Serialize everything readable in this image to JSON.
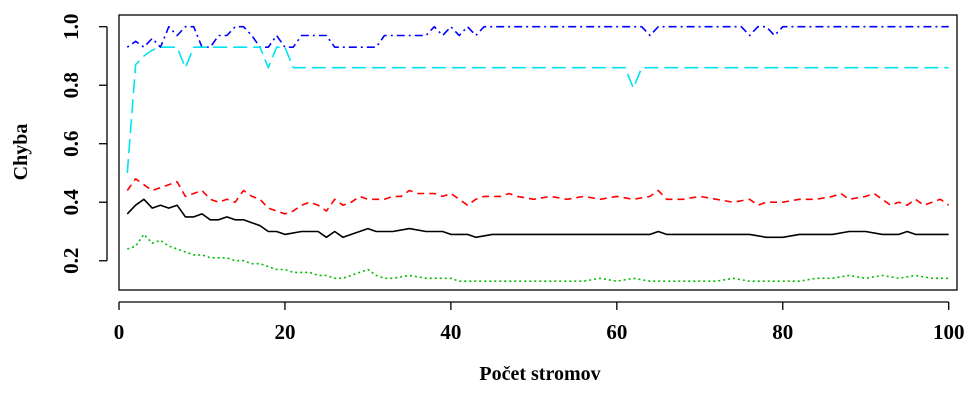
{
  "chart_data": {
    "type": "line",
    "xlabel": "Počet stromov",
    "ylabel": "Chyba",
    "xlim": [
      0,
      101
    ],
    "ylim": [
      0.1,
      1.04
    ],
    "xticks": [
      0,
      20,
      40,
      60,
      80,
      100
    ],
    "xtick_labels": [
      "0",
      "20",
      "40",
      "60",
      "80",
      "100"
    ],
    "yticks": [
      0.2,
      0.4,
      0.6,
      0.8,
      1.0
    ],
    "ytick_labels": [
      "0.2",
      "0.4",
      "0.6",
      "0.8",
      "1.0"
    ],
    "grid": false,
    "legend": "none",
    "series": [
      {
        "color": "#0000ff",
        "dash": "dotdash",
        "points": [
          [
            1,
            0.93
          ],
          [
            2,
            0.95
          ],
          [
            3,
            0.93
          ],
          [
            4,
            0.96
          ],
          [
            5,
            0.93
          ],
          [
            6,
            1.0
          ],
          [
            7,
            0.97
          ],
          [
            8,
            1.0
          ],
          [
            9,
            1.0
          ],
          [
            10,
            0.93
          ],
          [
            11,
            0.93
          ],
          [
            12,
            0.97
          ],
          [
            13,
            0.97
          ],
          [
            14,
            1.0
          ],
          [
            15,
            1.0
          ],
          [
            16,
            0.97
          ],
          [
            17,
            0.93
          ],
          [
            18,
            0.93
          ],
          [
            19,
            0.97
          ],
          [
            20,
            0.93
          ],
          [
            21,
            0.93
          ],
          [
            22,
            0.97
          ],
          [
            25,
            0.97
          ],
          [
            26,
            0.93
          ],
          [
            31,
            0.93
          ],
          [
            32,
            0.97
          ],
          [
            37,
            0.97
          ],
          [
            38,
            1.0
          ],
          [
            39,
            0.97
          ],
          [
            40,
            1.0
          ],
          [
            41,
            0.97
          ],
          [
            42,
            1.0
          ],
          [
            43,
            0.97
          ],
          [
            44,
            1.0
          ],
          [
            63,
            1.0
          ],
          [
            64,
            0.97
          ],
          [
            65,
            1.0
          ],
          [
            75,
            1.0
          ],
          [
            76,
            0.97
          ],
          [
            77,
            1.0
          ],
          [
            78,
            1.0
          ],
          [
            79,
            0.97
          ],
          [
            80,
            1.0
          ],
          [
            100,
            1.0
          ]
        ]
      },
      {
        "color": "#00e5ee",
        "dash": "longdash",
        "points": [
          [
            1,
            0.5
          ],
          [
            2,
            0.87
          ],
          [
            3,
            0.9
          ],
          [
            4,
            0.92
          ],
          [
            5,
            0.93
          ],
          [
            7,
            0.93
          ],
          [
            8,
            0.86
          ],
          [
            9,
            0.93
          ],
          [
            17,
            0.93
          ],
          [
            18,
            0.86
          ],
          [
            19,
            0.93
          ],
          [
            20,
            0.93
          ],
          [
            21,
            0.86
          ],
          [
            61,
            0.86
          ],
          [
            62,
            0.79
          ],
          [
            63,
            0.86
          ],
          [
            100,
            0.86
          ]
        ]
      },
      {
        "color": "#ff0000",
        "dash": "dashed",
        "points": [
          [
            1,
            0.44
          ],
          [
            2,
            0.48
          ],
          [
            3,
            0.46
          ],
          [
            4,
            0.44
          ],
          [
            5,
            0.45
          ],
          [
            6,
            0.46
          ],
          [
            7,
            0.47
          ],
          [
            8,
            0.42
          ],
          [
            9,
            0.43
          ],
          [
            10,
            0.44
          ],
          [
            11,
            0.41
          ],
          [
            12,
            0.4
          ],
          [
            13,
            0.41
          ],
          [
            14,
            0.4
          ],
          [
            15,
            0.44
          ],
          [
            16,
            0.42
          ],
          [
            17,
            0.41
          ],
          [
            18,
            0.38
          ],
          [
            19,
            0.37
          ],
          [
            20,
            0.36
          ],
          [
            21,
            0.37
          ],
          [
            22,
            0.39
          ],
          [
            23,
            0.4
          ],
          [
            24,
            0.39
          ],
          [
            25,
            0.37
          ],
          [
            26,
            0.41
          ],
          [
            27,
            0.39
          ],
          [
            28,
            0.4
          ],
          [
            29,
            0.42
          ],
          [
            30,
            0.41
          ],
          [
            32,
            0.41
          ],
          [
            33,
            0.42
          ],
          [
            34,
            0.42
          ],
          [
            35,
            0.44
          ],
          [
            36,
            0.43
          ],
          [
            38,
            0.43
          ],
          [
            39,
            0.42
          ],
          [
            40,
            0.43
          ],
          [
            41,
            0.41
          ],
          [
            42,
            0.39
          ],
          [
            43,
            0.41
          ],
          [
            44,
            0.42
          ],
          [
            46,
            0.42
          ],
          [
            47,
            0.43
          ],
          [
            48,
            0.42
          ],
          [
            50,
            0.41
          ],
          [
            52,
            0.42
          ],
          [
            54,
            0.41
          ],
          [
            56,
            0.42
          ],
          [
            58,
            0.41
          ],
          [
            60,
            0.42
          ],
          [
            62,
            0.41
          ],
          [
            64,
            0.42
          ],
          [
            65,
            0.44
          ],
          [
            66,
            0.41
          ],
          [
            68,
            0.41
          ],
          [
            70,
            0.42
          ],
          [
            72,
            0.41
          ],
          [
            74,
            0.4
          ],
          [
            76,
            0.41
          ],
          [
            77,
            0.39
          ],
          [
            78,
            0.4
          ],
          [
            80,
            0.4
          ],
          [
            82,
            0.41
          ],
          [
            84,
            0.41
          ],
          [
            86,
            0.42
          ],
          [
            87,
            0.43
          ],
          [
            88,
            0.41
          ],
          [
            90,
            0.42
          ],
          [
            91,
            0.43
          ],
          [
            92,
            0.41
          ],
          [
            93,
            0.39
          ],
          [
            94,
            0.4
          ],
          [
            95,
            0.39
          ],
          [
            96,
            0.41
          ],
          [
            97,
            0.39
          ],
          [
            98,
            0.4
          ],
          [
            99,
            0.41
          ],
          [
            100,
            0.39
          ]
        ]
      },
      {
        "color": "#000000",
        "dash": "solid",
        "points": [
          [
            1,
            0.36
          ],
          [
            2,
            0.39
          ],
          [
            3,
            0.41
          ],
          [
            4,
            0.38
          ],
          [
            5,
            0.39
          ],
          [
            6,
            0.38
          ],
          [
            7,
            0.39
          ],
          [
            8,
            0.35
          ],
          [
            9,
            0.35
          ],
          [
            10,
            0.36
          ],
          [
            11,
            0.34
          ],
          [
            12,
            0.34
          ],
          [
            13,
            0.35
          ],
          [
            14,
            0.34
          ],
          [
            15,
            0.34
          ],
          [
            16,
            0.33
          ],
          [
            17,
            0.32
          ],
          [
            18,
            0.3
          ],
          [
            19,
            0.3
          ],
          [
            20,
            0.29
          ],
          [
            22,
            0.3
          ],
          [
            24,
            0.3
          ],
          [
            25,
            0.28
          ],
          [
            26,
            0.3
          ],
          [
            27,
            0.28
          ],
          [
            28,
            0.29
          ],
          [
            29,
            0.3
          ],
          [
            30,
            0.31
          ],
          [
            31,
            0.3
          ],
          [
            33,
            0.3
          ],
          [
            35,
            0.31
          ],
          [
            37,
            0.3
          ],
          [
            39,
            0.3
          ],
          [
            40,
            0.29
          ],
          [
            42,
            0.29
          ],
          [
            43,
            0.28
          ],
          [
            45,
            0.29
          ],
          [
            47,
            0.29
          ],
          [
            49,
            0.29
          ],
          [
            50,
            0.29
          ],
          [
            52,
            0.29
          ],
          [
            54,
            0.29
          ],
          [
            56,
            0.29
          ],
          [
            58,
            0.29
          ],
          [
            60,
            0.29
          ],
          [
            62,
            0.29
          ],
          [
            64,
            0.29
          ],
          [
            65,
            0.3
          ],
          [
            66,
            0.29
          ],
          [
            68,
            0.29
          ],
          [
            70,
            0.29
          ],
          [
            72,
            0.29
          ],
          [
            74,
            0.29
          ],
          [
            76,
            0.29
          ],
          [
            78,
            0.28
          ],
          [
            80,
            0.28
          ],
          [
            82,
            0.29
          ],
          [
            84,
            0.29
          ],
          [
            86,
            0.29
          ],
          [
            88,
            0.3
          ],
          [
            90,
            0.3
          ],
          [
            92,
            0.29
          ],
          [
            94,
            0.29
          ],
          [
            95,
            0.3
          ],
          [
            96,
            0.29
          ],
          [
            98,
            0.29
          ],
          [
            100,
            0.29
          ]
        ]
      },
      {
        "color": "#00bb00",
        "dash": "dotted",
        "points": [
          [
            1,
            0.24
          ],
          [
            2,
            0.25
          ],
          [
            3,
            0.29
          ],
          [
            4,
            0.26
          ],
          [
            5,
            0.27
          ],
          [
            6,
            0.25
          ],
          [
            7,
            0.24
          ],
          [
            8,
            0.23
          ],
          [
            9,
            0.22
          ],
          [
            10,
            0.22
          ],
          [
            11,
            0.21
          ],
          [
            12,
            0.21
          ],
          [
            13,
            0.21
          ],
          [
            14,
            0.2
          ],
          [
            15,
            0.2
          ],
          [
            16,
            0.19
          ],
          [
            17,
            0.19
          ],
          [
            18,
            0.18
          ],
          [
            19,
            0.17
          ],
          [
            20,
            0.17
          ],
          [
            21,
            0.16
          ],
          [
            22,
            0.16
          ],
          [
            23,
            0.16
          ],
          [
            24,
            0.15
          ],
          [
            25,
            0.15
          ],
          [
            26,
            0.14
          ],
          [
            27,
            0.14
          ],
          [
            28,
            0.15
          ],
          [
            29,
            0.16
          ],
          [
            30,
            0.17
          ],
          [
            31,
            0.15
          ],
          [
            32,
            0.14
          ],
          [
            33,
            0.14
          ],
          [
            35,
            0.15
          ],
          [
            37,
            0.14
          ],
          [
            39,
            0.14
          ],
          [
            40,
            0.14
          ],
          [
            41,
            0.13
          ],
          [
            43,
            0.13
          ],
          [
            45,
            0.13
          ],
          [
            47,
            0.13
          ],
          [
            49,
            0.13
          ],
          [
            50,
            0.13
          ],
          [
            52,
            0.13
          ],
          [
            54,
            0.13
          ],
          [
            56,
            0.13
          ],
          [
            58,
            0.14
          ],
          [
            60,
            0.13
          ],
          [
            62,
            0.14
          ],
          [
            64,
            0.13
          ],
          [
            66,
            0.13
          ],
          [
            68,
            0.13
          ],
          [
            70,
            0.13
          ],
          [
            72,
            0.13
          ],
          [
            74,
            0.14
          ],
          [
            76,
            0.13
          ],
          [
            78,
            0.13
          ],
          [
            80,
            0.13
          ],
          [
            82,
            0.13
          ],
          [
            84,
            0.14
          ],
          [
            86,
            0.14
          ],
          [
            88,
            0.15
          ],
          [
            90,
            0.14
          ],
          [
            92,
            0.15
          ],
          [
            94,
            0.14
          ],
          [
            96,
            0.15
          ],
          [
            98,
            0.14
          ],
          [
            100,
            0.14
          ]
        ]
      }
    ]
  }
}
